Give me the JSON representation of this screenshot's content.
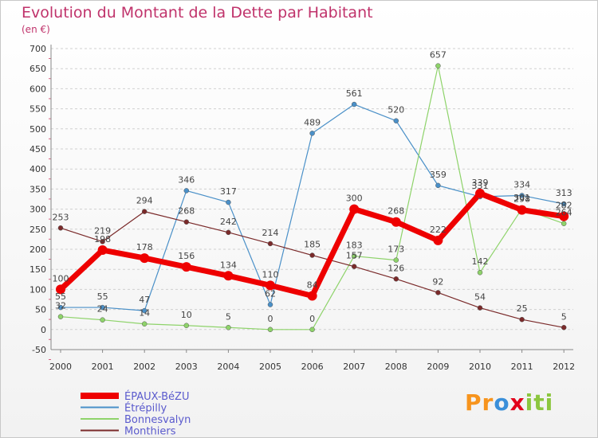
{
  "chart_data": {
    "type": "line",
    "title": "Evolution du Montant de la Dette par Habitant",
    "subtitle": "(en €)",
    "x": [
      "2000",
      "2001",
      "2002",
      "2003",
      "2004",
      "2005",
      "2006",
      "2007",
      "2008",
      "2009",
      "2010",
      "2011",
      "2012"
    ],
    "y_ticks": [
      -50,
      0,
      50,
      100,
      150,
      200,
      250,
      300,
      350,
      400,
      450,
      500,
      550,
      600,
      650,
      700
    ],
    "ylim": [
      -50,
      700
    ],
    "grid": "horizontal dashed",
    "legend_position": "bottom-left",
    "series": [
      {
        "name": "Étrépilly",
        "color": "#4a90c8",
        "width": 1.2,
        "values": [
          55,
          55,
          47,
          346,
          317,
          62,
          489,
          561,
          520,
          359,
          331,
          334,
          313
        ]
      },
      {
        "name": "Bonnesvalyn",
        "color": "#8ed36a",
        "width": 1.2,
        "values": [
          32,
          24,
          14,
          10,
          5,
          0,
          0,
          183,
          173,
          657,
          142,
          301,
          264
        ]
      },
      {
        "name": "Monthiers",
        "color": "#7a2a2a",
        "width": 1.2,
        "values": [
          253,
          219,
          294,
          268,
          242,
          214,
          185,
          157,
          126,
          92,
          54,
          25,
          5
        ]
      },
      {
        "name": "ÉPAUX-BéZU",
        "color": "#ee0000",
        "width": 7,
        "values": [
          100,
          198,
          178,
          156,
          134,
          110,
          84,
          300,
          268,
          222,
          339,
          298,
          282
        ]
      }
    ]
  },
  "brand": {
    "logo_parts": [
      "Pr",
      "o",
      "x",
      "iti"
    ]
  }
}
